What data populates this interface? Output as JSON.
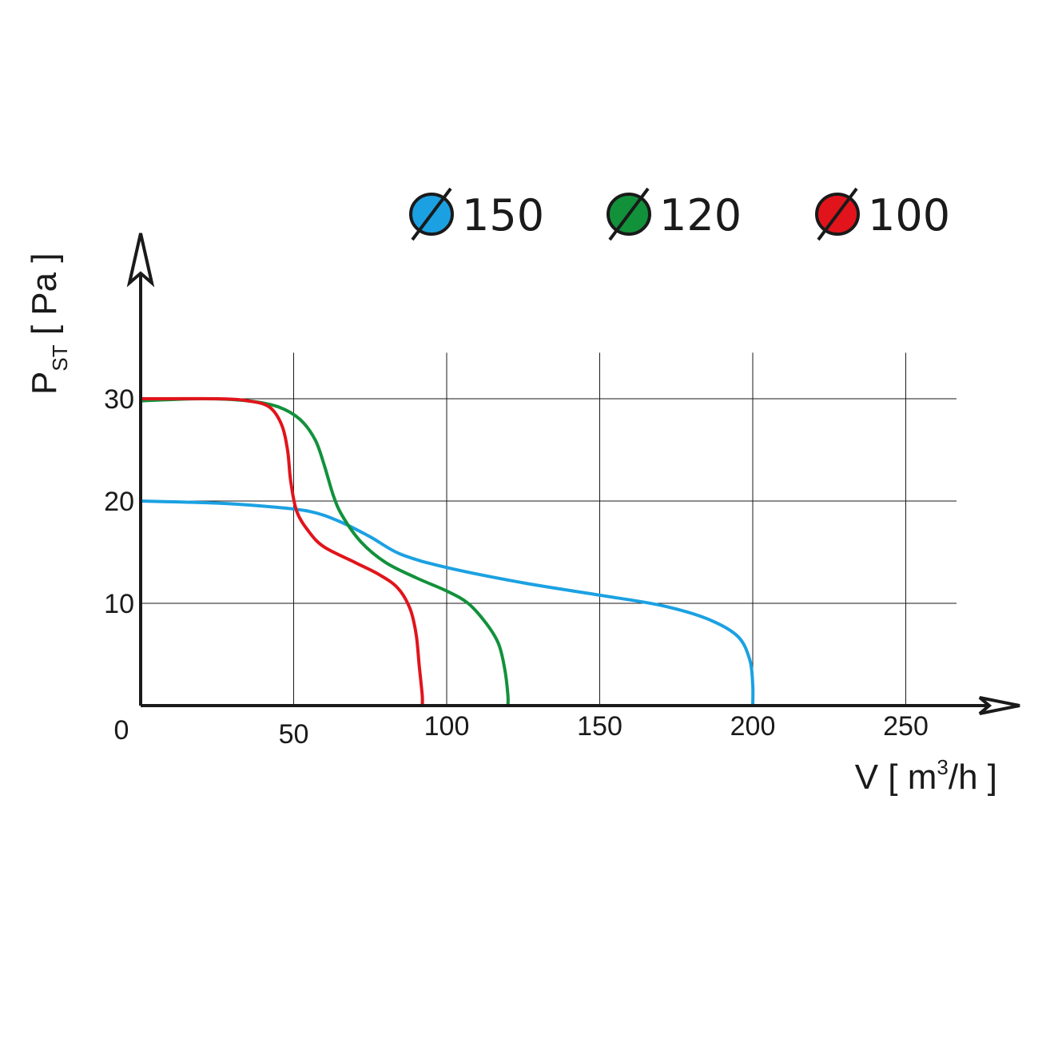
{
  "chart_data": {
    "type": "line",
    "xlabel": "V [ m³/h ]",
    "ylabel": "PST [ Pa ]",
    "xlim": [
      0,
      280
    ],
    "ylim": [
      0,
      40
    ],
    "x_ticks": [
      {
        "value": 0,
        "label": "0"
      },
      {
        "value": 50,
        "label": "50"
      },
      {
        "value": 100,
        "label": "100"
      },
      {
        "value": 150,
        "label": "150"
      },
      {
        "value": 200,
        "label": "200"
      },
      {
        "value": 250,
        "label": "250"
      }
    ],
    "y_ticks": [
      {
        "value": 10,
        "label": "10"
      },
      {
        "value": 20,
        "label": "20"
      },
      {
        "value": 30,
        "label": "30"
      }
    ],
    "grid": true,
    "legend_position": "top",
    "series": [
      {
        "name": "150",
        "color": "#1ba1e2",
        "points": [
          [
            0,
            20
          ],
          [
            25,
            19.8
          ],
          [
            40,
            19.5
          ],
          [
            55,
            19
          ],
          [
            65,
            18
          ],
          [
            75,
            16.5
          ],
          [
            85,
            14.8
          ],
          [
            100,
            13.5
          ],
          [
            125,
            12
          ],
          [
            150,
            10.8
          ],
          [
            170,
            9.8
          ],
          [
            185,
            8.5
          ],
          [
            195,
            6.8
          ],
          [
            199,
            4.5
          ],
          [
            200,
            2
          ],
          [
            200,
            0
          ]
        ]
      },
      {
        "name": "120",
        "color": "#12913b",
        "points": [
          [
            0,
            29.8
          ],
          [
            20,
            30
          ],
          [
            35,
            29.8
          ],
          [
            45,
            29.2
          ],
          [
            52,
            28
          ],
          [
            57,
            26
          ],
          [
            60,
            23.5
          ],
          [
            63,
            20.5
          ],
          [
            66,
            18.5
          ],
          [
            72,
            16
          ],
          [
            80,
            14
          ],
          [
            90,
            12.5
          ],
          [
            100,
            11.2
          ],
          [
            107,
            10
          ],
          [
            113,
            8
          ],
          [
            117,
            6
          ],
          [
            119,
            3.5
          ],
          [
            120,
            1
          ],
          [
            120,
            0
          ]
        ]
      },
      {
        "name": "100",
        "color": "#e1141c",
        "points": [
          [
            0,
            30
          ],
          [
            25,
            30
          ],
          [
            35,
            29.8
          ],
          [
            42,
            29.2
          ],
          [
            46,
            27.5
          ],
          [
            48,
            25
          ],
          [
            49,
            22
          ],
          [
            51,
            19
          ],
          [
            55,
            17
          ],
          [
            60,
            15.5
          ],
          [
            70,
            14
          ],
          [
            78,
            12.8
          ],
          [
            84,
            11.5
          ],
          [
            88,
            9.5
          ],
          [
            90,
            7
          ],
          [
            91,
            4
          ],
          [
            92,
            1
          ],
          [
            92,
            0
          ]
        ]
      }
    ]
  }
}
